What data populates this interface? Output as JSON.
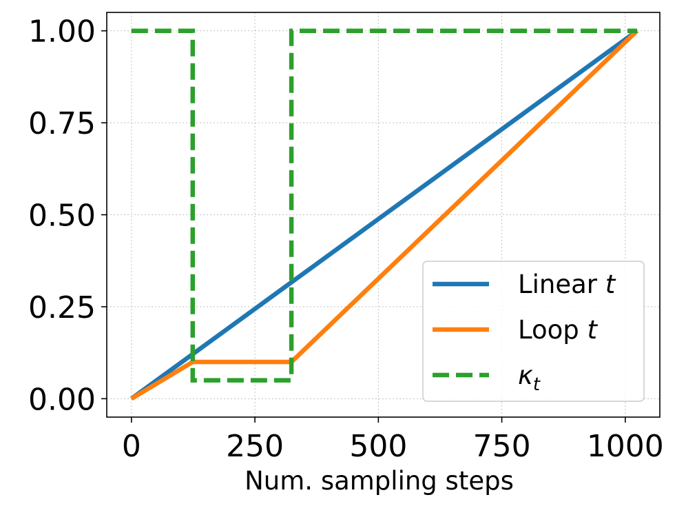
{
  "chart_data": {
    "type": "line",
    "title": "",
    "xlabel": "Num. sampling steps",
    "ylabel": "",
    "xlim": [
      -50,
      1070
    ],
    "ylim": [
      -0.05,
      1.05
    ],
    "xticks": [
      0,
      250,
      500,
      750,
      1000
    ],
    "xtick_labels": [
      "0",
      "250",
      "500",
      "750",
      "1000"
    ],
    "yticks": [
      0,
      0.25,
      0.5,
      0.75,
      1.0
    ],
    "ytick_labels": [
      "0.00",
      "0.25",
      "0.50",
      "0.75",
      "1.00"
    ],
    "grid": true,
    "legend_position": "bottom-right",
    "series": [
      {
        "name": "Linear t",
        "name_text": "Linear ",
        "name_var": "t",
        "color": "#1f77b4",
        "style": "solid",
        "x": [
          0,
          1024
        ],
        "y": [
          0,
          1.0
        ]
      },
      {
        "name": "Loop t",
        "name_text": "Loop ",
        "name_var": "t",
        "color": "#ff7f0e",
        "style": "solid",
        "x": [
          0,
          124,
          324,
          1024
        ],
        "y": [
          0,
          0.1,
          0.1,
          1.0
        ]
      },
      {
        "name": "κt",
        "name_text": "",
        "name_var": "κ",
        "name_sub": "t",
        "color": "#2ca02c",
        "style": "dashed",
        "x": [
          0,
          124,
          124,
          324,
          324,
          1024
        ],
        "y": [
          1.0,
          1.0,
          0.05,
          0.05,
          1.0,
          1.0
        ]
      }
    ]
  }
}
